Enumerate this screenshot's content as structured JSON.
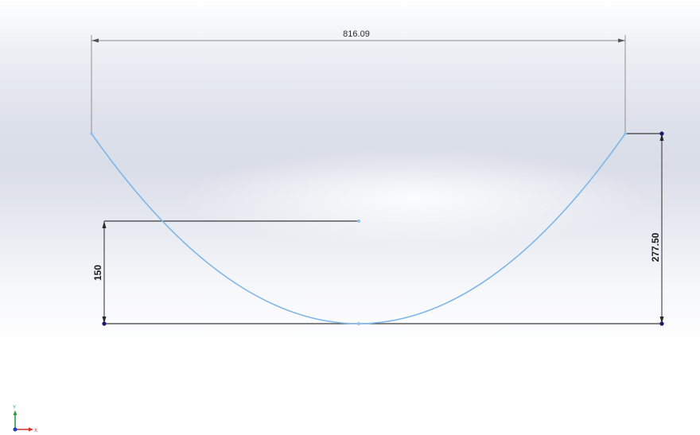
{
  "sketch": {
    "dimensions": {
      "width": "816.09",
      "arc_height": "277.50",
      "line_height": "150"
    },
    "colors": {
      "curve": "#7fb7e8",
      "dimension_line": "#555555",
      "sketch_line": "#333333",
      "point": "#1a1a6e"
    }
  },
  "triad": {
    "x_label": "X",
    "y_label": "Y"
  }
}
